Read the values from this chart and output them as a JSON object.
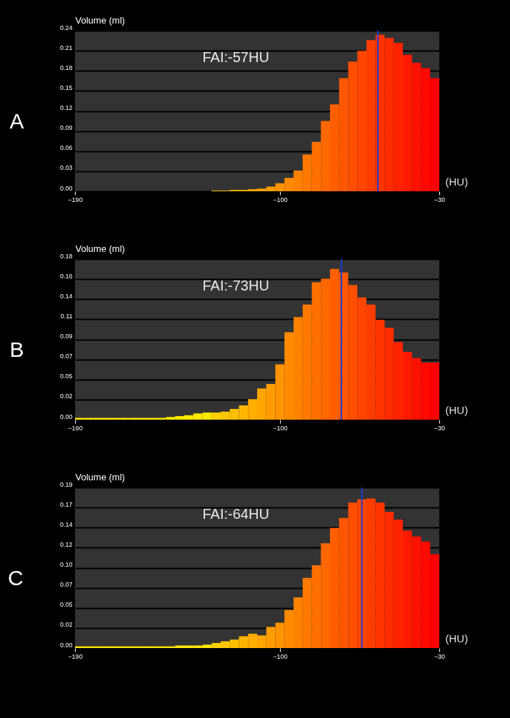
{
  "chart_data": [
    {
      "type": "histogram",
      "title": "A",
      "xlabel": "(HU)",
      "ylabel": "Volume (ml)",
      "annotations": [
        "FAI:-57HU"
      ],
      "bins": [
        -190,
        -186,
        -182,
        -178,
        -174,
        -170,
        -166,
        -162,
        -158,
        -154,
        -150,
        -146,
        -142,
        -138,
        -134,
        -130,
        -126,
        -122,
        -118,
        -114,
        -110,
        -106,
        -102,
        -98,
        -94,
        -90,
        -86,
        -82,
        -78,
        -74,
        -70,
        -66,
        -62,
        -58,
        -54,
        -50,
        -46,
        -42,
        -38,
        -34,
        -30
      ],
      "values": [
        0,
        0,
        0,
        0,
        0,
        0,
        0,
        0,
        0,
        0,
        0,
        0,
        0,
        0,
        0,
        0.001,
        0.001,
        0.002,
        0.002,
        0.003,
        0.004,
        0.007,
        0.012,
        0.02,
        0.031,
        0.055,
        0.074,
        0.105,
        0.13,
        0.169,
        0.194,
        0.21,
        0.226,
        0.234,
        0.229,
        0.222,
        0.204,
        0.192,
        0.184,
        0.169
      ],
      "colors": [
        "#ffe800",
        "#ffe800",
        "#ffe800",
        "#ffe800",
        "#ffe800",
        "#ffe800",
        "#ffe800",
        "#ffe800",
        "#ffe800",
        "#ffe800",
        "#ffe800",
        "#ffe800",
        "#ffe800",
        "#ffe800",
        "#ffe800",
        "#ffd000",
        "#ffc700",
        "#ffbf00",
        "#ffb600",
        "#ffad00",
        "#ffa500",
        "#ff9c00",
        "#ff9300",
        "#ff8b00",
        "#ff8200",
        "#ff7900",
        "#ff7100",
        "#ff6800",
        "#ff5f00",
        "#ff5700",
        "#ff4e00",
        "#ff4500",
        "#ff3d00",
        "#ff3400",
        "#ff2b00",
        "#ff2300",
        "#ff1a00",
        "#ff1100",
        "#ff0900",
        "#ff0000"
      ],
      "xlim": [
        -190,
        -30
      ],
      "xticks": [
        -190,
        -100,
        -30
      ],
      "ylim": [
        0,
        0.24
      ],
      "yticks": [
        {
          "value": 0,
          "label": "0.00"
        },
        {
          "value": 0.03,
          "label": "0.03"
        },
        {
          "value": 0.06,
          "label": "0.06"
        },
        {
          "value": 0.09,
          "label": "0.09"
        },
        {
          "value": 0.12,
          "label": "0.12"
        },
        {
          "value": 0.15,
          "label": "0.15"
        },
        {
          "value": 0.18,
          "label": "0.18"
        },
        {
          "value": 0.21,
          "label": "0.21"
        },
        {
          "value": 0.24,
          "label": "0.24"
        }
      ],
      "grid": "y",
      "ref_lines": [
        {
          "axis": "x",
          "value": -57,
          "color": "#1a3cd0"
        }
      ]
    },
    {
      "type": "histogram",
      "title": "B",
      "xlabel": "(HU)",
      "ylabel": "Volume (ml)",
      "annotations": [
        "FAI:-73HU"
      ],
      "bins": [
        -190,
        -186,
        -182,
        -178,
        -174,
        -170,
        -166,
        -162,
        -158,
        -154,
        -150,
        -146,
        -142,
        -138,
        -134,
        -130,
        -126,
        -122,
        -118,
        -114,
        -110,
        -106,
        -102,
        -98,
        -94,
        -90,
        -86,
        -82,
        -78,
        -74,
        -70,
        -66,
        -62,
        -58,
        -54,
        -50,
        -46,
        -42,
        -38,
        -34,
        -30
      ],
      "values": [
        0.002,
        0.002,
        0.002,
        0.002,
        0.002,
        0.002,
        0.002,
        0.002,
        0.002,
        0.002,
        0.003,
        0.004,
        0.005,
        0.007,
        0.008,
        0.008,
        0.009,
        0.012,
        0.016,
        0.023,
        0.035,
        0.04,
        0.062,
        0.098,
        0.115,
        0.129,
        0.154,
        0.158,
        0.169,
        0.165,
        0.151,
        0.137,
        0.129,
        0.112,
        0.103,
        0.087,
        0.076,
        0.069,
        0.064,
        0.064
      ],
      "colors": [
        "#ffe800",
        "#ffe800",
        "#ffe800",
        "#ffe800",
        "#ffe800",
        "#ffe800",
        "#ffe800",
        "#ffe800",
        "#ffe800",
        "#ffe800",
        "#ffe800",
        "#ffe800",
        "#ffe800",
        "#ffe800",
        "#ffe800",
        "#ffd000",
        "#ffc700",
        "#ffbf00",
        "#ffb600",
        "#ffad00",
        "#ffa500",
        "#ff9c00",
        "#ff9300",
        "#ff8b00",
        "#ff8200",
        "#ff7900",
        "#ff7100",
        "#ff6800",
        "#ff5f00",
        "#ff5700",
        "#ff4e00",
        "#ff4500",
        "#ff3d00",
        "#ff3400",
        "#ff2b00",
        "#ff2300",
        "#ff1a00",
        "#ff1100",
        "#ff0900",
        "#ff0000"
      ],
      "xlim": [
        -190,
        -30
      ],
      "xticks": [
        -190,
        -100,
        -30
      ],
      "ylim": [
        0,
        0.18
      ],
      "yticks": [
        {
          "value": 0,
          "label": "0.00"
        },
        {
          "value": 0.0225,
          "label": "0.02"
        },
        {
          "value": 0.045,
          "label": "0.05"
        },
        {
          "value": 0.0675,
          "label": "0.07"
        },
        {
          "value": 0.09,
          "label": "0.09"
        },
        {
          "value": 0.1125,
          "label": "0.11"
        },
        {
          "value": 0.135,
          "label": "0.14"
        },
        {
          "value": 0.1575,
          "label": "0.16"
        },
        {
          "value": 0.18,
          "label": "0.18"
        }
      ],
      "grid": "y",
      "ref_lines": [
        {
          "axis": "x",
          "value": -73,
          "color": "#1a3cd0"
        }
      ]
    },
    {
      "type": "histogram",
      "title": "C",
      "xlabel": "(HU)",
      "ylabel": "Volume (ml)",
      "annotations": [
        "FAI:-64HU"
      ],
      "bins": [
        -190,
        -186,
        -182,
        -178,
        -174,
        -170,
        -166,
        -162,
        -158,
        -154,
        -150,
        -146,
        -142,
        -138,
        -134,
        -130,
        -126,
        -122,
        -118,
        -114,
        -110,
        -106,
        -102,
        -98,
        -94,
        -90,
        -86,
        -82,
        -78,
        -74,
        -70,
        -66,
        -62,
        -58,
        -54,
        -50,
        -46,
        -42,
        -38,
        -34,
        -30
      ],
      "values": [
        0.002,
        0.002,
        0.002,
        0.002,
        0.002,
        0.002,
        0.002,
        0.002,
        0.002,
        0.002,
        0.002,
        0.003,
        0.003,
        0.003,
        0.004,
        0.006,
        0.008,
        0.01,
        0.014,
        0.017,
        0.015,
        0.025,
        0.03,
        0.045,
        0.06,
        0.083,
        0.098,
        0.124,
        0.142,
        0.154,
        0.172,
        0.176,
        0.177,
        0.172,
        0.161,
        0.152,
        0.139,
        0.132,
        0.126,
        0.111
      ],
      "colors": [
        "#ffe800",
        "#ffe800",
        "#ffe800",
        "#ffe800",
        "#ffe800",
        "#ffe800",
        "#ffe800",
        "#ffe800",
        "#ffe800",
        "#ffe800",
        "#ffe800",
        "#ffe800",
        "#ffe800",
        "#ffe800",
        "#ffe800",
        "#ffd000",
        "#ffc700",
        "#ffbf00",
        "#ffb600",
        "#ffad00",
        "#ffa500",
        "#ff9c00",
        "#ff9300",
        "#ff8b00",
        "#ff8200",
        "#ff7900",
        "#ff7100",
        "#ff6800",
        "#ff5f00",
        "#ff5700",
        "#ff4e00",
        "#ff4500",
        "#ff3d00",
        "#ff3400",
        "#ff2b00",
        "#ff2300",
        "#ff1a00",
        "#ff1100",
        "#ff0900",
        "#ff0000"
      ],
      "xlim": [
        -190,
        -30
      ],
      "xticks": [
        -190,
        -100,
        -30
      ],
      "ylim": [
        0,
        0.19
      ],
      "yticks": [
        {
          "value": 0,
          "label": "0.00"
        },
        {
          "value": 0.02375,
          "label": "0.02"
        },
        {
          "value": 0.0475,
          "label": "0.05"
        },
        {
          "value": 0.07125,
          "label": "0.07"
        },
        {
          "value": 0.095,
          "label": "0.10"
        },
        {
          "value": 0.11875,
          "label": "0.12"
        },
        {
          "value": 0.1425,
          "label": "0.14"
        },
        {
          "value": 0.16625,
          "label": "0.17"
        },
        {
          "value": 0.19,
          "label": "0.19"
        }
      ],
      "grid": "y",
      "ref_lines": [
        {
          "axis": "x",
          "value": -64,
          "color": "#1a3cd0"
        }
      ]
    }
  ]
}
